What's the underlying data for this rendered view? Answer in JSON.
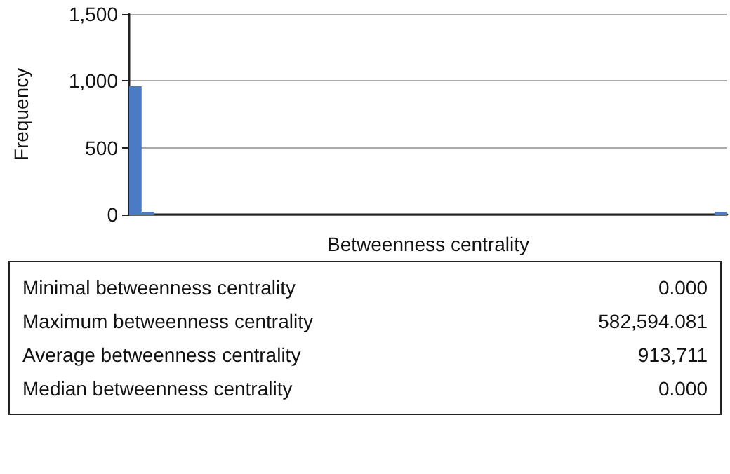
{
  "chart_data": {
    "type": "bar",
    "xlabel": "Betweenness centrality",
    "ylabel": "Frequency",
    "categories": [
      null,
      null,
      null,
      null,
      null,
      null,
      null,
      null,
      null,
      null,
      null,
      null,
      null,
      null,
      null,
      null,
      null,
      null,
      null,
      null,
      null,
      null,
      null,
      null,
      null,
      null,
      null,
      null,
      null,
      null,
      null,
      null,
      null,
      null,
      null,
      null,
      null,
      null,
      null,
      null,
      null,
      null,
      null,
      null,
      null,
      null,
      null,
      null
    ],
    "values": [
      960,
      20,
      0,
      0,
      0,
      0,
      0,
      0,
      0,
      0,
      0,
      0,
      0,
      0,
      0,
      0,
      0,
      0,
      0,
      0,
      0,
      0,
      0,
      0,
      0,
      0,
      0,
      0,
      0,
      0,
      0,
      0,
      0,
      0,
      0,
      0,
      0,
      0,
      0,
      0,
      0,
      0,
      0,
      0,
      0,
      0,
      0,
      20
    ],
    "color": "#4a7bc4",
    "ylim": [
      0,
      1500
    ],
    "yticks": [
      0,
      500,
      {
        "value": 1000,
        "label": "1,000"
      },
      {
        "value": 1500,
        "label": "1,500"
      }
    ],
    "grid": "y",
    "tick_labels": "y",
    "annotations": [
      "Minimal betweenness centrality",
      "0.000",
      "Maximum betweenness centrality",
      "582,594.081",
      "Average betweenness centrality",
      "913,711",
      "Median betweenness centrality",
      "0.000"
    ]
  }
}
